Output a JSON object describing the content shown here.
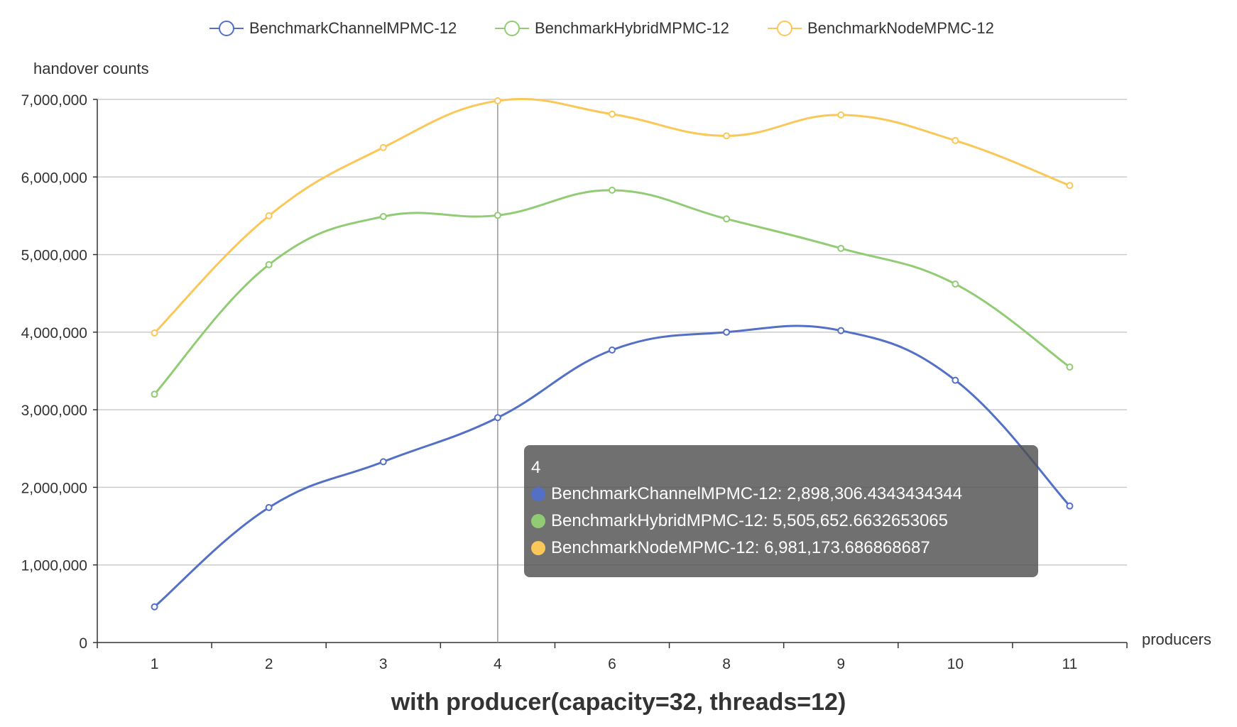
{
  "chart_data": {
    "type": "line",
    "smooth": true,
    "title": "with producer(capacity=32, threads=12)",
    "xlabel": "producers",
    "ylabel": "handover counts",
    "categories": [
      "1",
      "2",
      "3",
      "4",
      "6",
      "8",
      "9",
      "10",
      "11"
    ],
    "ylim": [
      0,
      7000000
    ],
    "yticks": [
      "0",
      "1,000,000",
      "2,000,000",
      "3,000,000",
      "4,000,000",
      "5,000,000",
      "6,000,000",
      "7,000,000"
    ],
    "grid": true,
    "legend_position": "top-center",
    "series": [
      {
        "name": "BenchmarkChannelMPMC-12",
        "color": "#5470c6",
        "values": [
          460000,
          1740000,
          2330000,
          2898306.4343434344,
          3770000,
          4000000,
          4020000,
          3380000,
          1760000
        ]
      },
      {
        "name": "BenchmarkHybridMPMC-12",
        "color": "#91cc75",
        "values": [
          3200000,
          4870000,
          5490000,
          5505652.6632653065,
          5830000,
          5460000,
          5080000,
          4620000,
          3550000
        ]
      },
      {
        "name": "BenchmarkNodeMPMC-12",
        "color": "#fac858",
        "values": [
          3990000,
          5500000,
          6380000,
          6981173.686868687,
          6810000,
          6530000,
          6800000,
          6470000,
          5890000
        ]
      }
    ]
  },
  "tooltip": {
    "category": "4",
    "rows": [
      {
        "text": "BenchmarkChannelMPMC-12: 2,898,306.4343434344",
        "color": "#5470c6"
      },
      {
        "text": "BenchmarkHybridMPMC-12: 5,505,652.6632653065",
        "color": "#91cc75"
      },
      {
        "text": "BenchmarkNodeMPMC-12: 6,981,173.686868687",
        "color": "#fac858"
      }
    ]
  }
}
